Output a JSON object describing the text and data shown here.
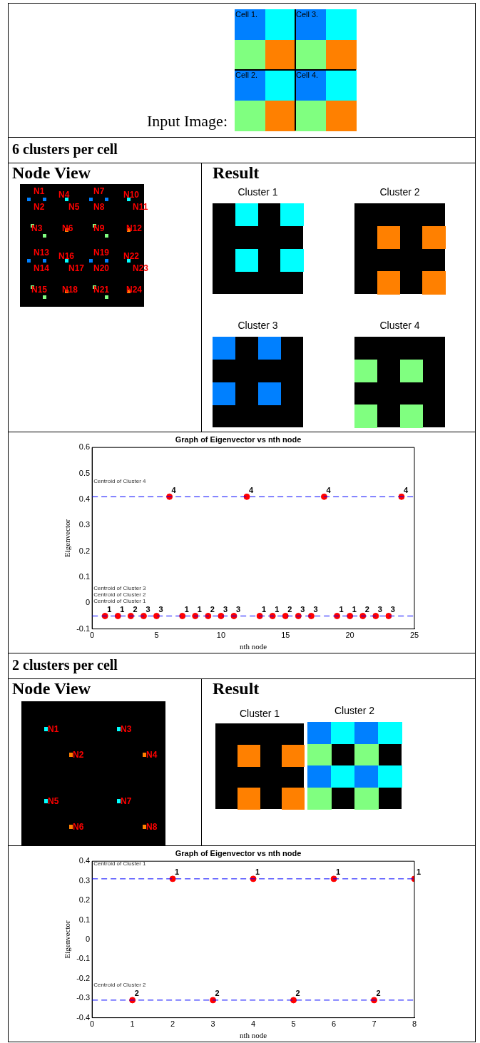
{
  "chart_data": [
    {
      "type": "other",
      "annotations": [
        "Input Image:",
        "Cell 1.",
        "Cell 3.",
        "Cell 2.",
        "Cell 4."
      ]
    },
    {
      "type": "other",
      "title": "6 clusters per cell",
      "annotations": [
        "Node View",
        "Result",
        "Cluster 1",
        "Cluster 2",
        "Cluster 3",
        "Cluster 4",
        "N1",
        "N2",
        "N3",
        "N4",
        "N5",
        "N6",
        "N7",
        "N8",
        "N9",
        "N10",
        "N11",
        "N12",
        "N13",
        "N14",
        "N15",
        "N16",
        "N17",
        "N18",
        "N19",
        "N20",
        "N21",
        "N22",
        "N23",
        "N24"
      ]
    },
    {
      "type": "scatter",
      "title": "Graph of Eigenvector vs nth node",
      "xlabel": "nth node",
      "ylabel": "Eigenvector",
      "x": [
        1,
        2,
        3,
        4,
        5,
        6,
        7,
        8,
        9,
        10,
        11,
        12,
        13,
        14,
        15,
        16,
        17,
        18,
        19,
        20,
        21,
        22,
        23,
        24
      ],
      "series": [
        {
          "color": "#ff0000",
          "values": [
            -0.05,
            -0.05,
            -0.05,
            -0.05,
            -0.05,
            0.41,
            -0.05,
            -0.05,
            -0.05,
            -0.05,
            -0.05,
            0.41,
            -0.05,
            -0.05,
            -0.05,
            -0.05,
            -0.05,
            0.41,
            -0.05,
            -0.05,
            -0.05,
            -0.05,
            -0.05,
            0.41
          ]
        }
      ],
      "marker": "circle",
      "xlim": [
        0,
        25
      ],
      "xticks": [
        0,
        5,
        10,
        15,
        20,
        25
      ],
      "ylim": [
        -0.1,
        0.6
      ],
      "yticks": [
        -0.1,
        0,
        0.1,
        0.2,
        0.3,
        0.4,
        0.5,
        0.6
      ],
      "ref_lines": [
        {
          "axis": "y",
          "value": 0.41,
          "label": "Centroid of Cluster 4",
          "color": "#0000ff",
          "line_style": "dashed"
        },
        {
          "axis": "y",
          "value": -0.05,
          "label": "Centroid of Cluster 1",
          "color": "#0000ff",
          "line_style": "dashed"
        }
      ],
      "annotations": [
        "Centroid of Cluster 2",
        "Centroid of Cluster 3",
        {
          "text": "1",
          "x": 1,
          "y": -0.05
        },
        {
          "text": "1",
          "x": 2,
          "y": -0.05
        },
        {
          "text": "2",
          "x": 3,
          "y": -0.05
        },
        {
          "text": "3",
          "x": 4,
          "y": -0.05
        },
        {
          "text": "3",
          "x": 5,
          "y": -0.05
        },
        {
          "text": "4",
          "x": 6,
          "y": 0.41
        },
        {
          "text": "1",
          "x": 7,
          "y": -0.05
        },
        {
          "text": "1",
          "x": 8,
          "y": -0.05
        },
        {
          "text": "2",
          "x": 9,
          "y": -0.05
        },
        {
          "text": "3",
          "x": 10,
          "y": -0.05
        },
        {
          "text": "3",
          "x": 11,
          "y": -0.05
        },
        {
          "text": "4",
          "x": 12,
          "y": 0.41
        },
        {
          "text": "1",
          "x": 13,
          "y": -0.05
        },
        {
          "text": "1",
          "x": 14,
          "y": -0.05
        },
        {
          "text": "2",
          "x": 15,
          "y": -0.05
        },
        {
          "text": "3",
          "x": 16,
          "y": -0.05
        },
        {
          "text": "3",
          "x": 17,
          "y": -0.05
        },
        {
          "text": "4",
          "x": 18,
          "y": 0.41
        },
        {
          "text": "1",
          "x": 19,
          "y": -0.05
        },
        {
          "text": "1",
          "x": 20,
          "y": -0.05
        },
        {
          "text": "2",
          "x": 21,
          "y": -0.05
        },
        {
          "text": "3",
          "x": 22,
          "y": -0.05
        },
        {
          "text": "3",
          "x": 23,
          "y": -0.05
        },
        {
          "text": "4",
          "x": 24,
          "y": 0.41
        }
      ]
    },
    {
      "type": "other",
      "title": "2 clusters per cell",
      "annotations": [
        "Node View",
        "Result",
        "Cluster 1",
        "Cluster 2",
        "N1",
        "N2",
        "N3",
        "N4",
        "N5",
        "N6",
        "N7",
        "N8"
      ]
    },
    {
      "type": "scatter",
      "title": "Graph of Eigenvector vs nth node",
      "xlabel": "nth node",
      "ylabel": "Eigenvector",
      "x": [
        1,
        2,
        3,
        4,
        5,
        6,
        7,
        8
      ],
      "series": [
        {
          "color": "#ff0000",
          "values": [
            -0.31,
            0.31,
            -0.31,
            0.31,
            -0.31,
            0.31,
            -0.31,
            0.31
          ]
        }
      ],
      "marker": "circle",
      "xlim": [
        0,
        8
      ],
      "xticks": [
        0,
        1,
        2,
        3,
        4,
        5,
        6,
        7,
        8
      ],
      "ylim": [
        -0.4,
        0.4
      ],
      "yticks": [
        -0.4,
        -0.3,
        -0.2,
        -0.1,
        0,
        0.1,
        0.2,
        0.3,
        0.4
      ],
      "ref_lines": [
        {
          "axis": "y",
          "value": 0.31,
          "label": "Centroid of Cluster 1",
          "color": "#0000ff",
          "line_style": "dashed"
        },
        {
          "axis": "y",
          "value": -0.31,
          "label": "Centroid of Cluster 2",
          "color": "#0000ff",
          "line_style": "dashed"
        }
      ],
      "annotations": [
        {
          "text": "2",
          "x": 1,
          "y": -0.31
        },
        {
          "text": "1",
          "x": 2,
          "y": 0.31
        },
        {
          "text": "2",
          "x": 3,
          "y": -0.31
        },
        {
          "text": "1",
          "x": 4,
          "y": 0.31
        },
        {
          "text": "2",
          "x": 5,
          "y": -0.31
        },
        {
          "text": "1",
          "x": 6,
          "y": 0.31
        },
        {
          "text": "2",
          "x": 7,
          "y": -0.31
        },
        {
          "text": "1",
          "x": 8,
          "y": 0.31
        }
      ]
    }
  ]
}
